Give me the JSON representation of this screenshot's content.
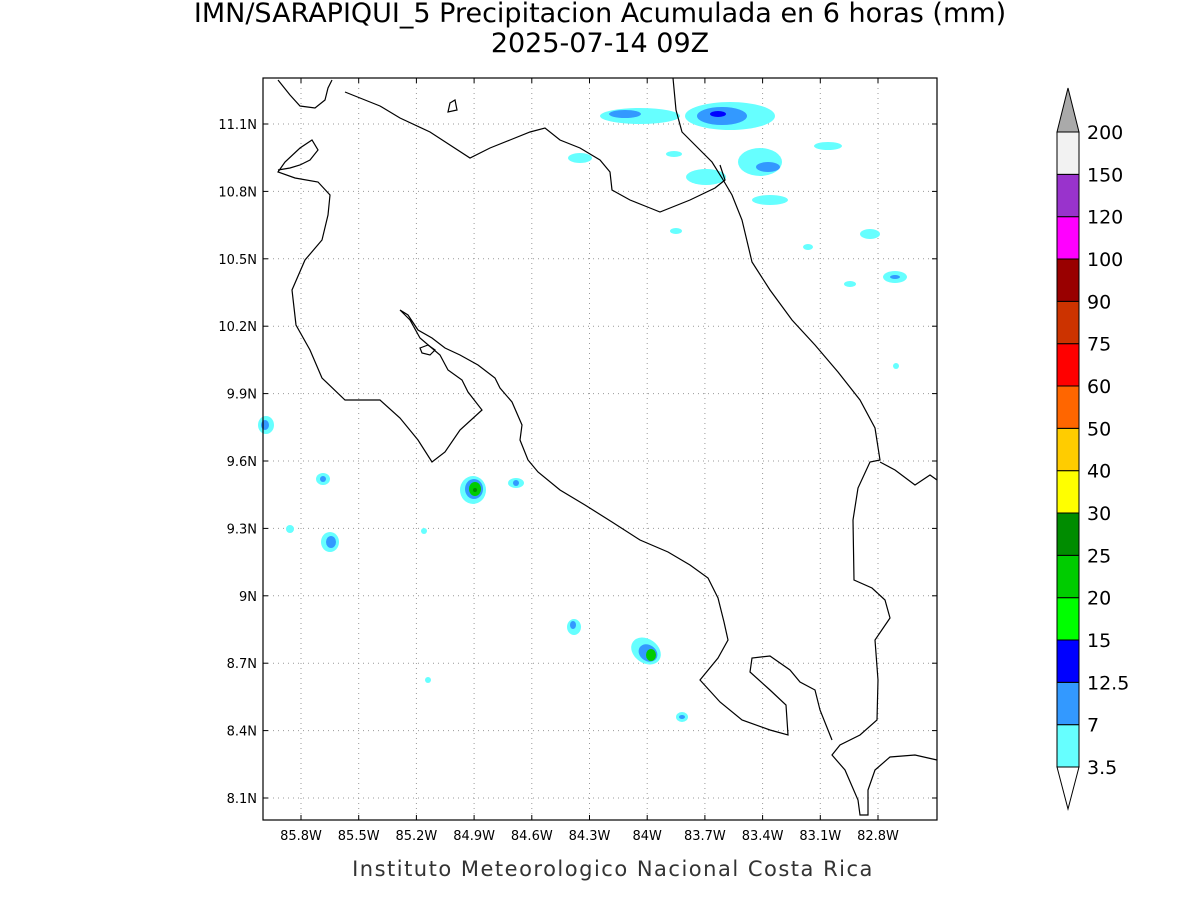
{
  "header": {
    "title": "IMN/SARAPIQUI_5 Precipitacion Acumulada en 6 horas (mm)",
    "subtitle": "2025-07-14 09Z"
  },
  "map": {
    "lat_labels": [
      "11.1N",
      "10.8N",
      "10.5N",
      "10.2N",
      "9.9N",
      "9.6N",
      "9.3N",
      "9N",
      "8.7N",
      "8.4N",
      "8.1N"
    ],
    "lon_labels": [
      "85.8W",
      "85.5W",
      "85.2W",
      "84.9W",
      "84.6W",
      "84.3W",
      "84W",
      "83.7W",
      "83.4W",
      "83.1W",
      "82.8W"
    ]
  },
  "legend": {
    "labels": [
      "3.5",
      "7",
      "12.5",
      "15",
      "20",
      "25",
      "30",
      "40",
      "50",
      "60",
      "75",
      "90",
      "100",
      "120",
      "150",
      "200"
    ],
    "colors": [
      "#ffffff",
      "#66ffff",
      "#3399ff",
      "#0000ff",
      "#00ff00",
      "#00cc00",
      "#008c00",
      "#ffff00",
      "#ffcc00",
      "#ff6600",
      "#ff0000",
      "#cc3300",
      "#990000",
      "#ff00ff",
      "#9933cc",
      "#f2f2f2",
      "#aaaaaa"
    ]
  },
  "footer": "Instituto Meteorologico Nacional Costa Rica"
}
